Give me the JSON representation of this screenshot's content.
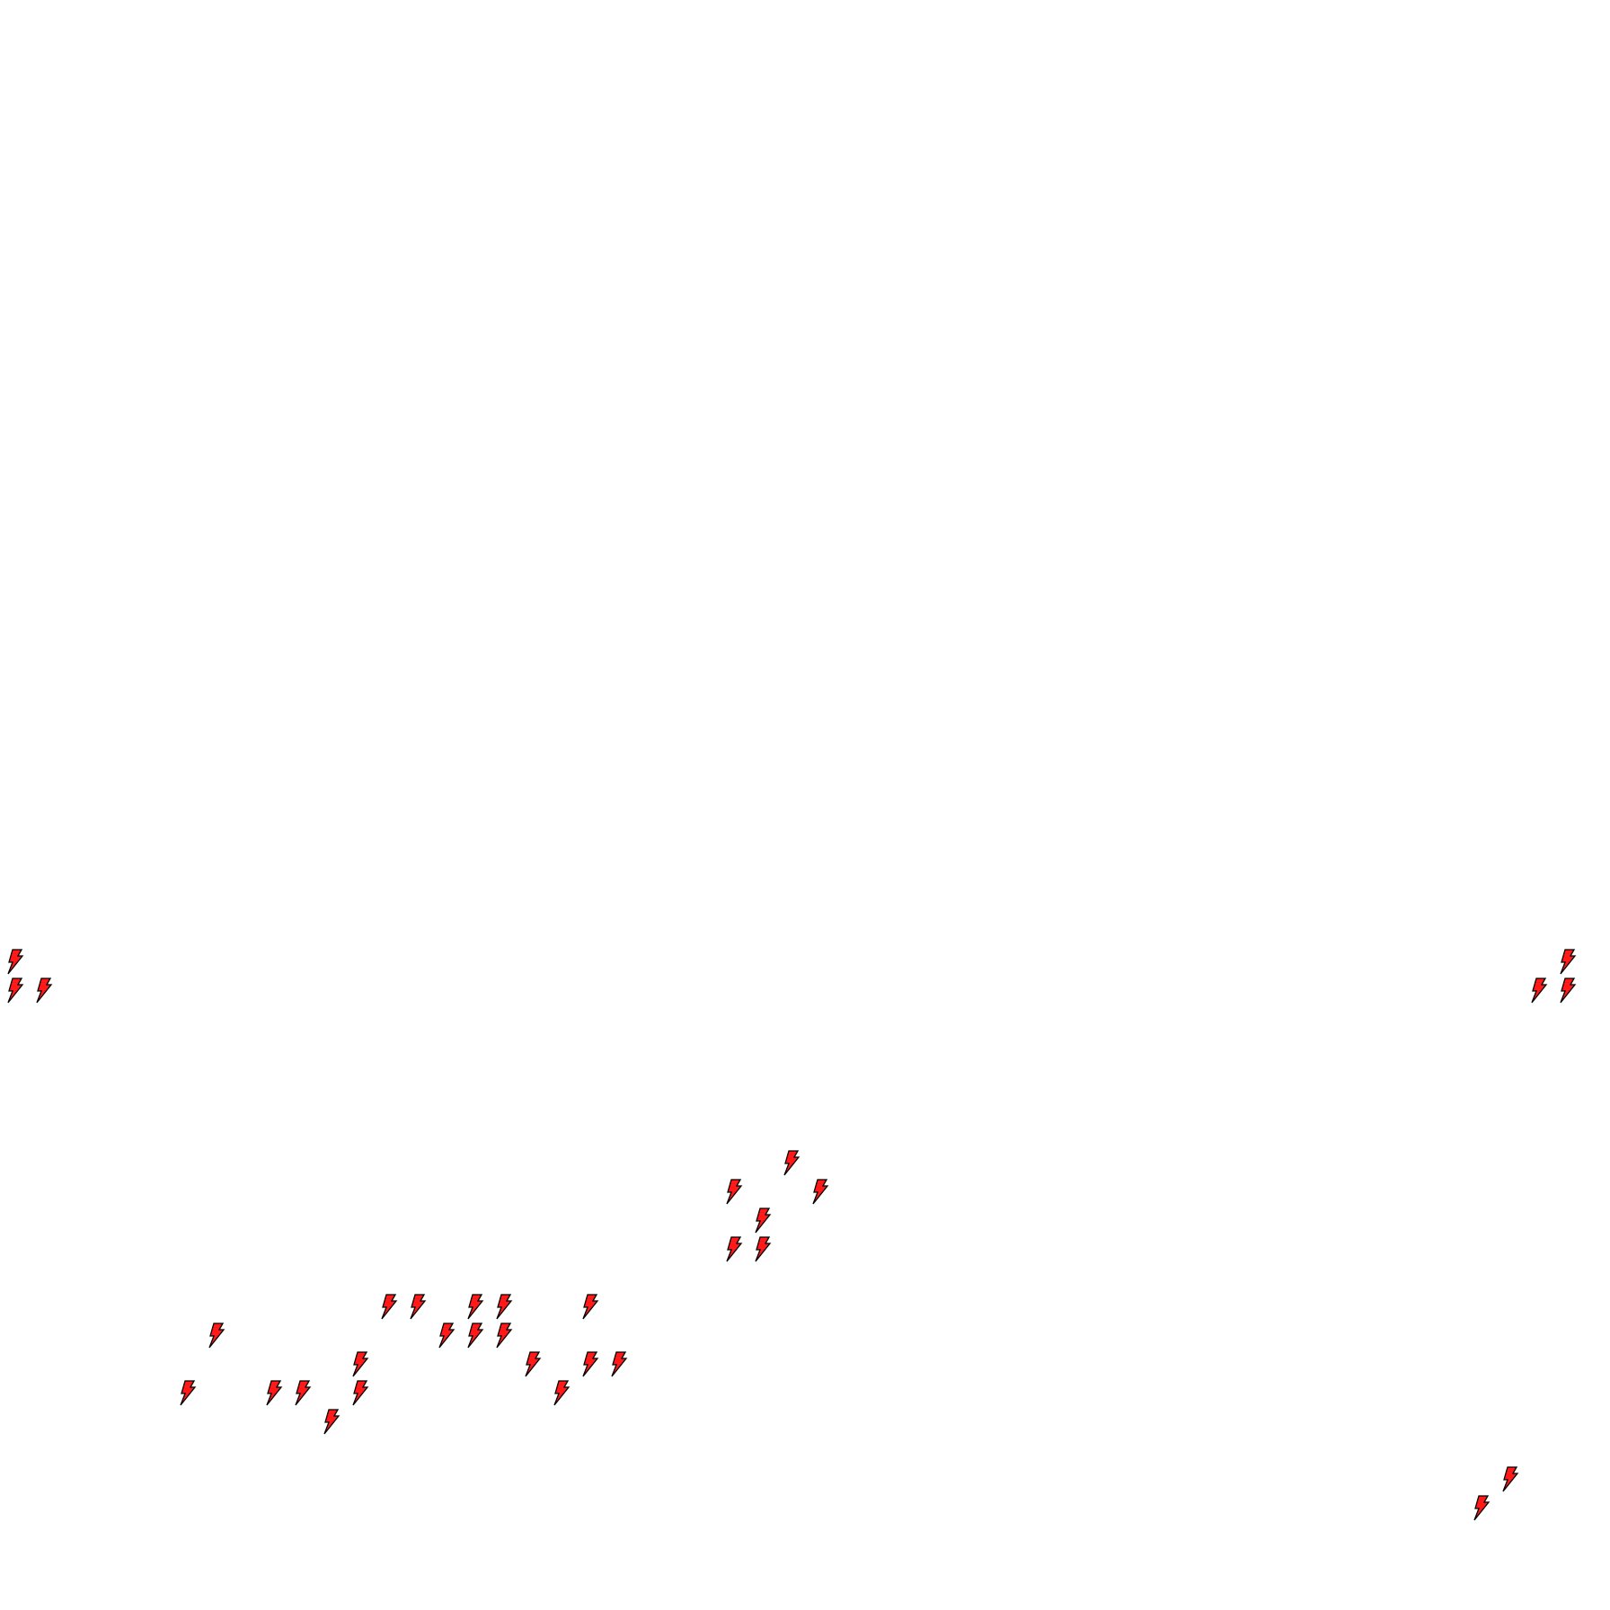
{
  "map": {
    "background": "#ffffff",
    "marker": {
      "icon": "lightning-bolt-icon",
      "fill_color": "#ff1a1a",
      "stroke_color": "#000000"
    }
  }
}
